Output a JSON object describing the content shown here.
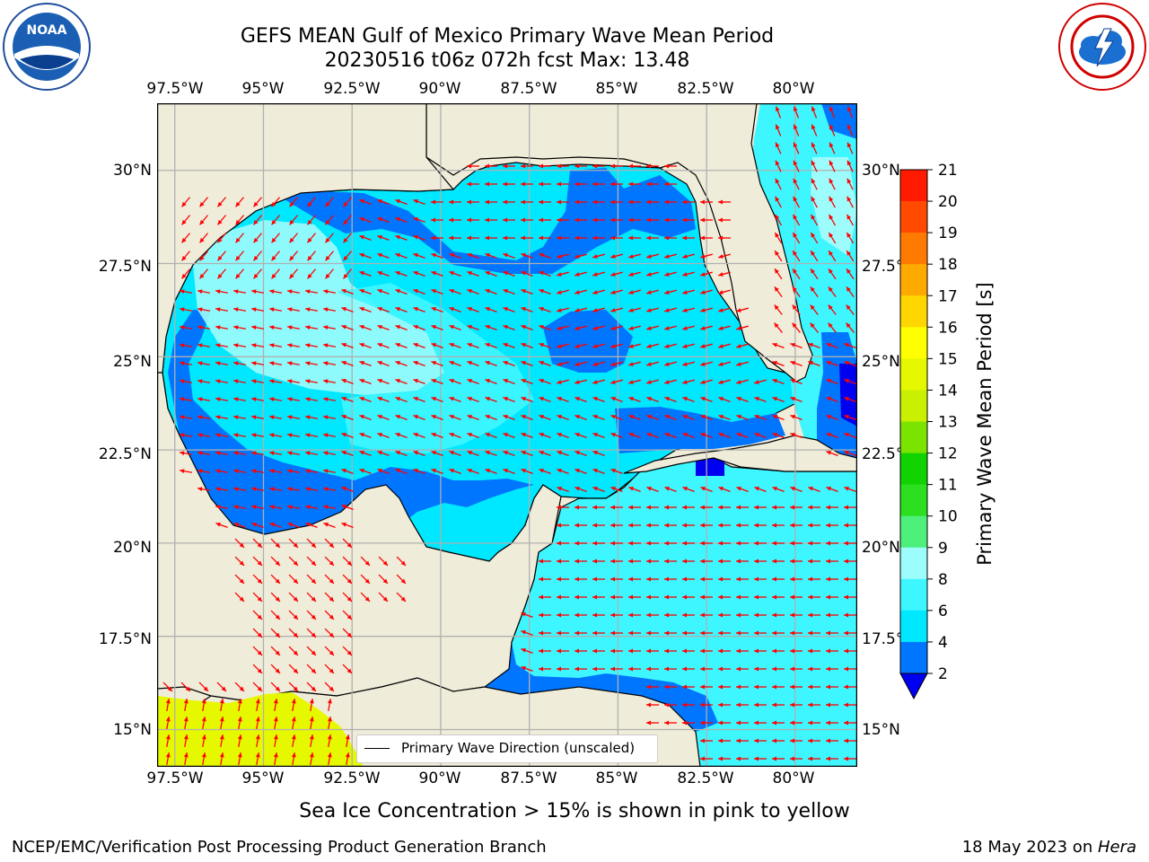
{
  "title": {
    "line1": "GEFS MEAN Gulf of Mexico Primary Wave Mean Period",
    "line2": "20230516 t06z 072h fcst   Max: 13.48"
  },
  "logos": {
    "left": {
      "icon": "noaa-logo",
      "text": "NOAA"
    },
    "right": {
      "icon": "nws-logo"
    }
  },
  "axes": {
    "lon_labels": [
      "97.5°W",
      "95°W",
      "92.5°W",
      "90°W",
      "87.5°W",
      "85°W",
      "82.5°W",
      "80°W"
    ],
    "lat_labels": [
      "30°N",
      "27.5°N",
      "25°N",
      "22.5°N",
      "20°N",
      "17.5°N",
      "15°N"
    ],
    "lon_range": [
      -98,
      -78.25
    ],
    "lat_range": [
      14,
      31.8
    ],
    "grid": true
  },
  "colorbar": {
    "label": "Primary Wave Mean Period [s]",
    "ticks": [
      "2",
      "4",
      "6",
      "8",
      "9",
      "10",
      "11",
      "12",
      "13",
      "14",
      "15",
      "16",
      "17",
      "18",
      "19",
      "20",
      "21"
    ],
    "colors": [
      "#0076ff",
      "#00e8ff",
      "#3ef6ff",
      "#9dfcfc",
      "#4cf07a",
      "#2ce020",
      "#11d300",
      "#7ae400",
      "#c8f000",
      "#e6f800",
      "#ffff00",
      "#ffd600",
      "#ffaa00",
      "#ff7a00",
      "#ff4a00",
      "#ff1a00"
    ],
    "under_color": "#0000f0"
  },
  "legend": {
    "label": "Primary Wave Direction (unscaled)"
  },
  "caption": "Sea Ice Concentration > 15% is shown in pink to yellow",
  "footer": {
    "left": "NCEP/EMC/Verification Post Processing Product Generation Branch",
    "right_prefix": "18 May 2023 on ",
    "right_italic": "Hera"
  },
  "colors": {
    "land": "#efecda",
    "arrow": "#ff0000",
    "grid": "#b0b0b0",
    "pacific": "#e6f800"
  }
}
